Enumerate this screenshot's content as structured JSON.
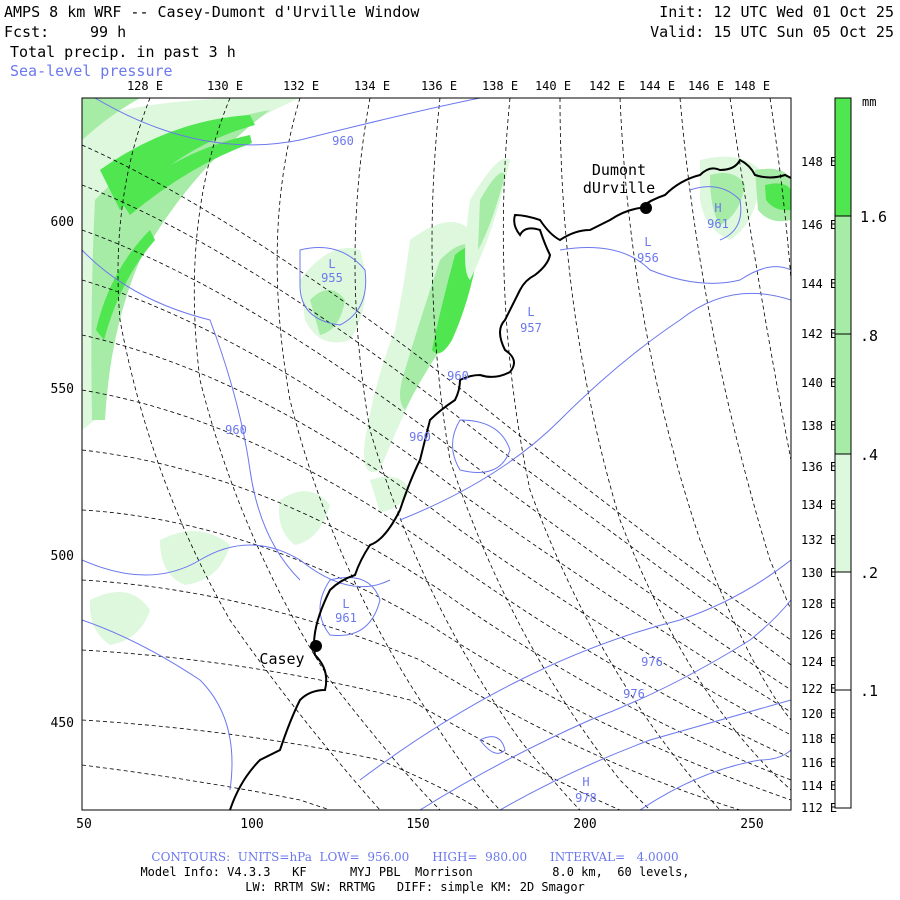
{
  "header": {
    "title": "AMPS 8 km WRF -- Casey-Dumont d'Urville Window",
    "init": "Init: 12 UTC Wed 01 Oct 25",
    "fcst_label": "Fcst:",
    "fcst_value": "99 h",
    "valid": "Valid: 15 UTC Sun 05 Oct 25",
    "field1": "Total precip. in past 3 h",
    "field2": "Sea-level pressure"
  },
  "colors": {
    "contour": "#6b78ee",
    "precip_light": "#ddf8dd",
    "precip_mid": "#a6eba6",
    "precip_strong": "#4fe64f",
    "coast": "#000000",
    "grid": "#000000"
  },
  "top_lon_labels": [
    "128 E",
    "130 E",
    "132 E",
    "134 E",
    "136 E",
    "138 E",
    "140 E",
    "142 E",
    "144 E",
    "146 E",
    "148 E"
  ],
  "right_lon_labels": [
    "148 E",
    "146 E",
    "144 E",
    "142 E",
    "140 E",
    "138 E",
    "136 E",
    "134 E",
    "132 E",
    "130 E",
    "128 E",
    "126 E",
    "124 E",
    "122 E",
    "120 E",
    "118 E",
    "116 E",
    "114 E",
    "112 E"
  ],
  "y_axis_labels": [
    "600",
    "550",
    "500",
    "450"
  ],
  "x_axis_labels": [
    "50",
    "100",
    "150",
    "200",
    "250"
  ],
  "colorbar": {
    "unit": "mm",
    "labels": [
      "1.6",
      ".8",
      ".4",
      ".2",
      ".1"
    ]
  },
  "stations": [
    {
      "name_line1": "Dumont",
      "name_line2": "dUrville"
    },
    {
      "name_line1": "Casey",
      "name_line2": ""
    }
  ],
  "pressure_labels": [
    "960",
    "L",
    "955",
    "L",
    "957",
    "960",
    "960",
    "960",
    "L",
    "961",
    "L",
    "956",
    "961",
    "H",
    "976",
    "976",
    "978",
    "H"
  ],
  "footer": {
    "contours": "CONTOURS:  UNITS=hPa  LOW=  956.00      HIGH=  980.00      INTERVAL=   4.0000",
    "model1": "Model Info: V4.3.3   KF      MYJ PBL  Morrison           8.0 km,  60 levels,",
    "model2": "LW: RRTM SW: RRTMG   DIFF: simple KM: 2D Smagor"
  }
}
